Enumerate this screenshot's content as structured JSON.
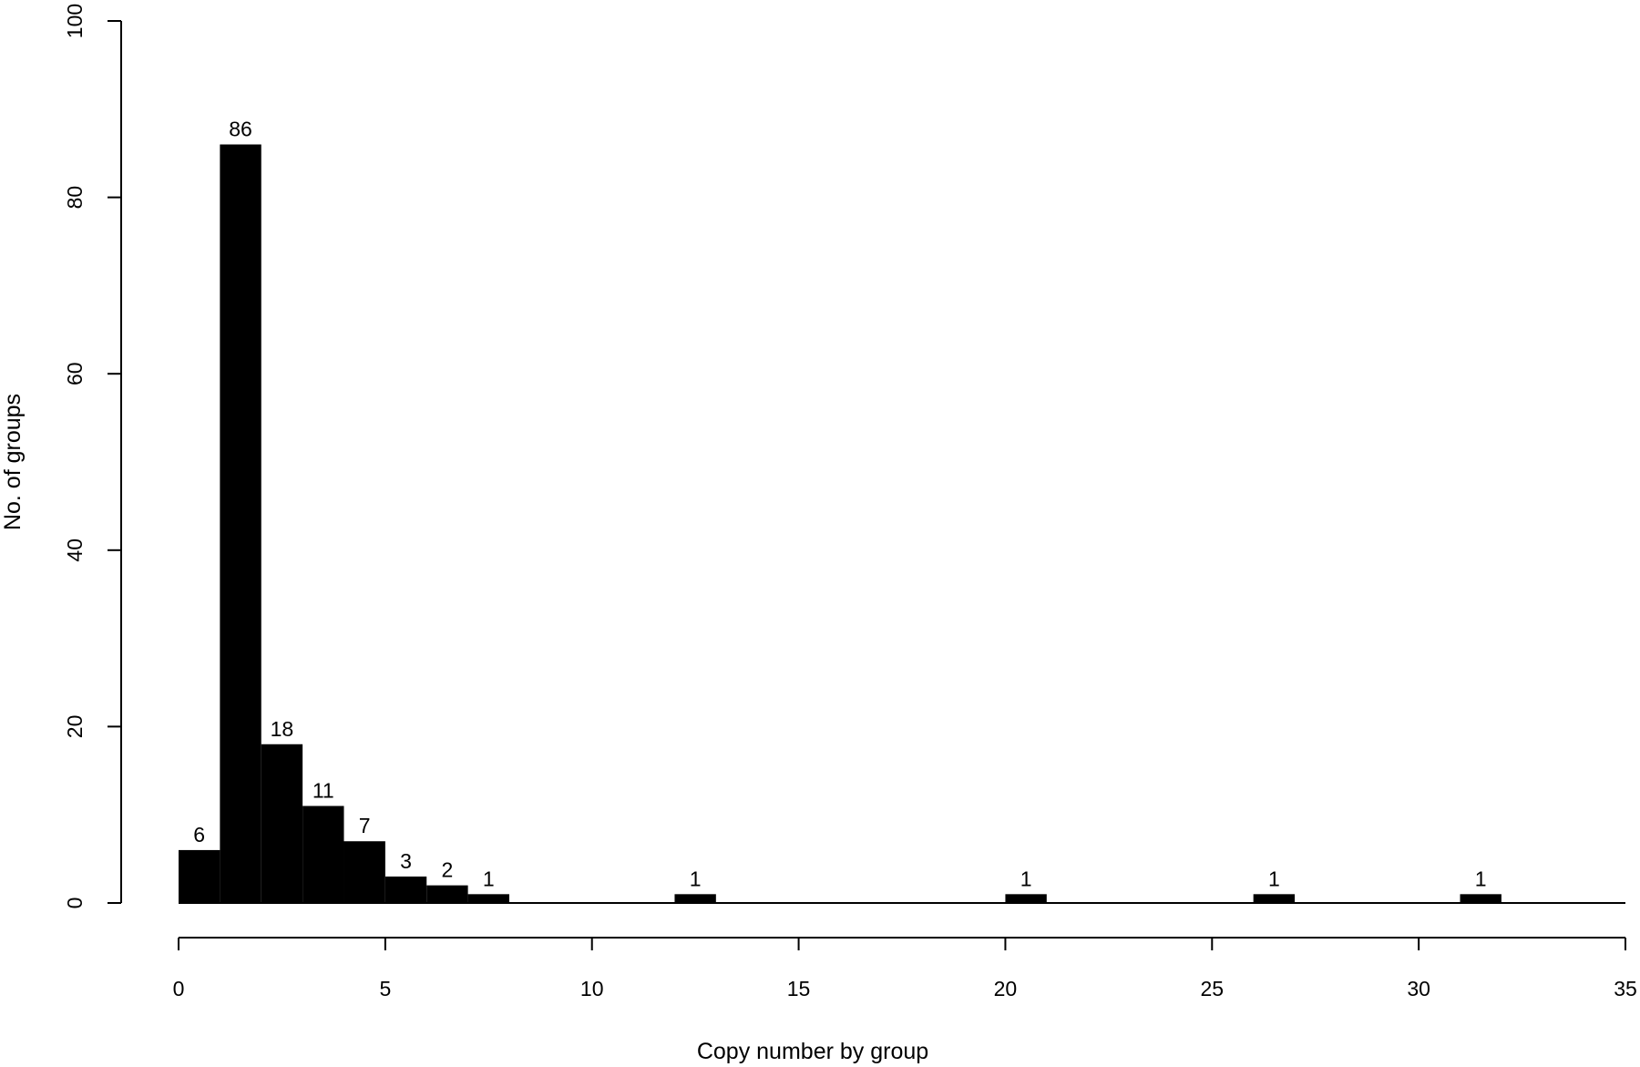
{
  "chart_data": {
    "type": "bar",
    "title": "",
    "xlabel": "Copy number by group",
    "ylabel": "No. of groups",
    "xlim": [
      0,
      35
    ],
    "ylim": [
      0,
      100
    ],
    "xticks": [
      "0",
      "5",
      "10",
      "15",
      "20",
      "25",
      "30",
      "35"
    ],
    "yticks": [
      "0",
      "20",
      "40",
      "60",
      "80",
      "100"
    ],
    "grid": false,
    "bins": [
      {
        "start": 0,
        "end": 1,
        "value": 6
      },
      {
        "start": 1,
        "end": 2,
        "value": 86
      },
      {
        "start": 2,
        "end": 3,
        "value": 18
      },
      {
        "start": 3,
        "end": 4,
        "value": 11
      },
      {
        "start": 4,
        "end": 5,
        "value": 7
      },
      {
        "start": 5,
        "end": 6,
        "value": 3
      },
      {
        "start": 6,
        "end": 7,
        "value": 2
      },
      {
        "start": 7,
        "end": 8,
        "value": 1
      },
      {
        "start": 12,
        "end": 13,
        "value": 1
      },
      {
        "start": 20,
        "end": 21,
        "value": 1
      },
      {
        "start": 26,
        "end": 27,
        "value": 1
      },
      {
        "start": 31,
        "end": 32,
        "value": 1
      }
    ],
    "labels": [
      "6",
      "86",
      "18",
      "11",
      "7",
      "3",
      "2",
      "1",
      "1",
      "1",
      "1",
      "1"
    ],
    "bar_color": "#000000"
  }
}
